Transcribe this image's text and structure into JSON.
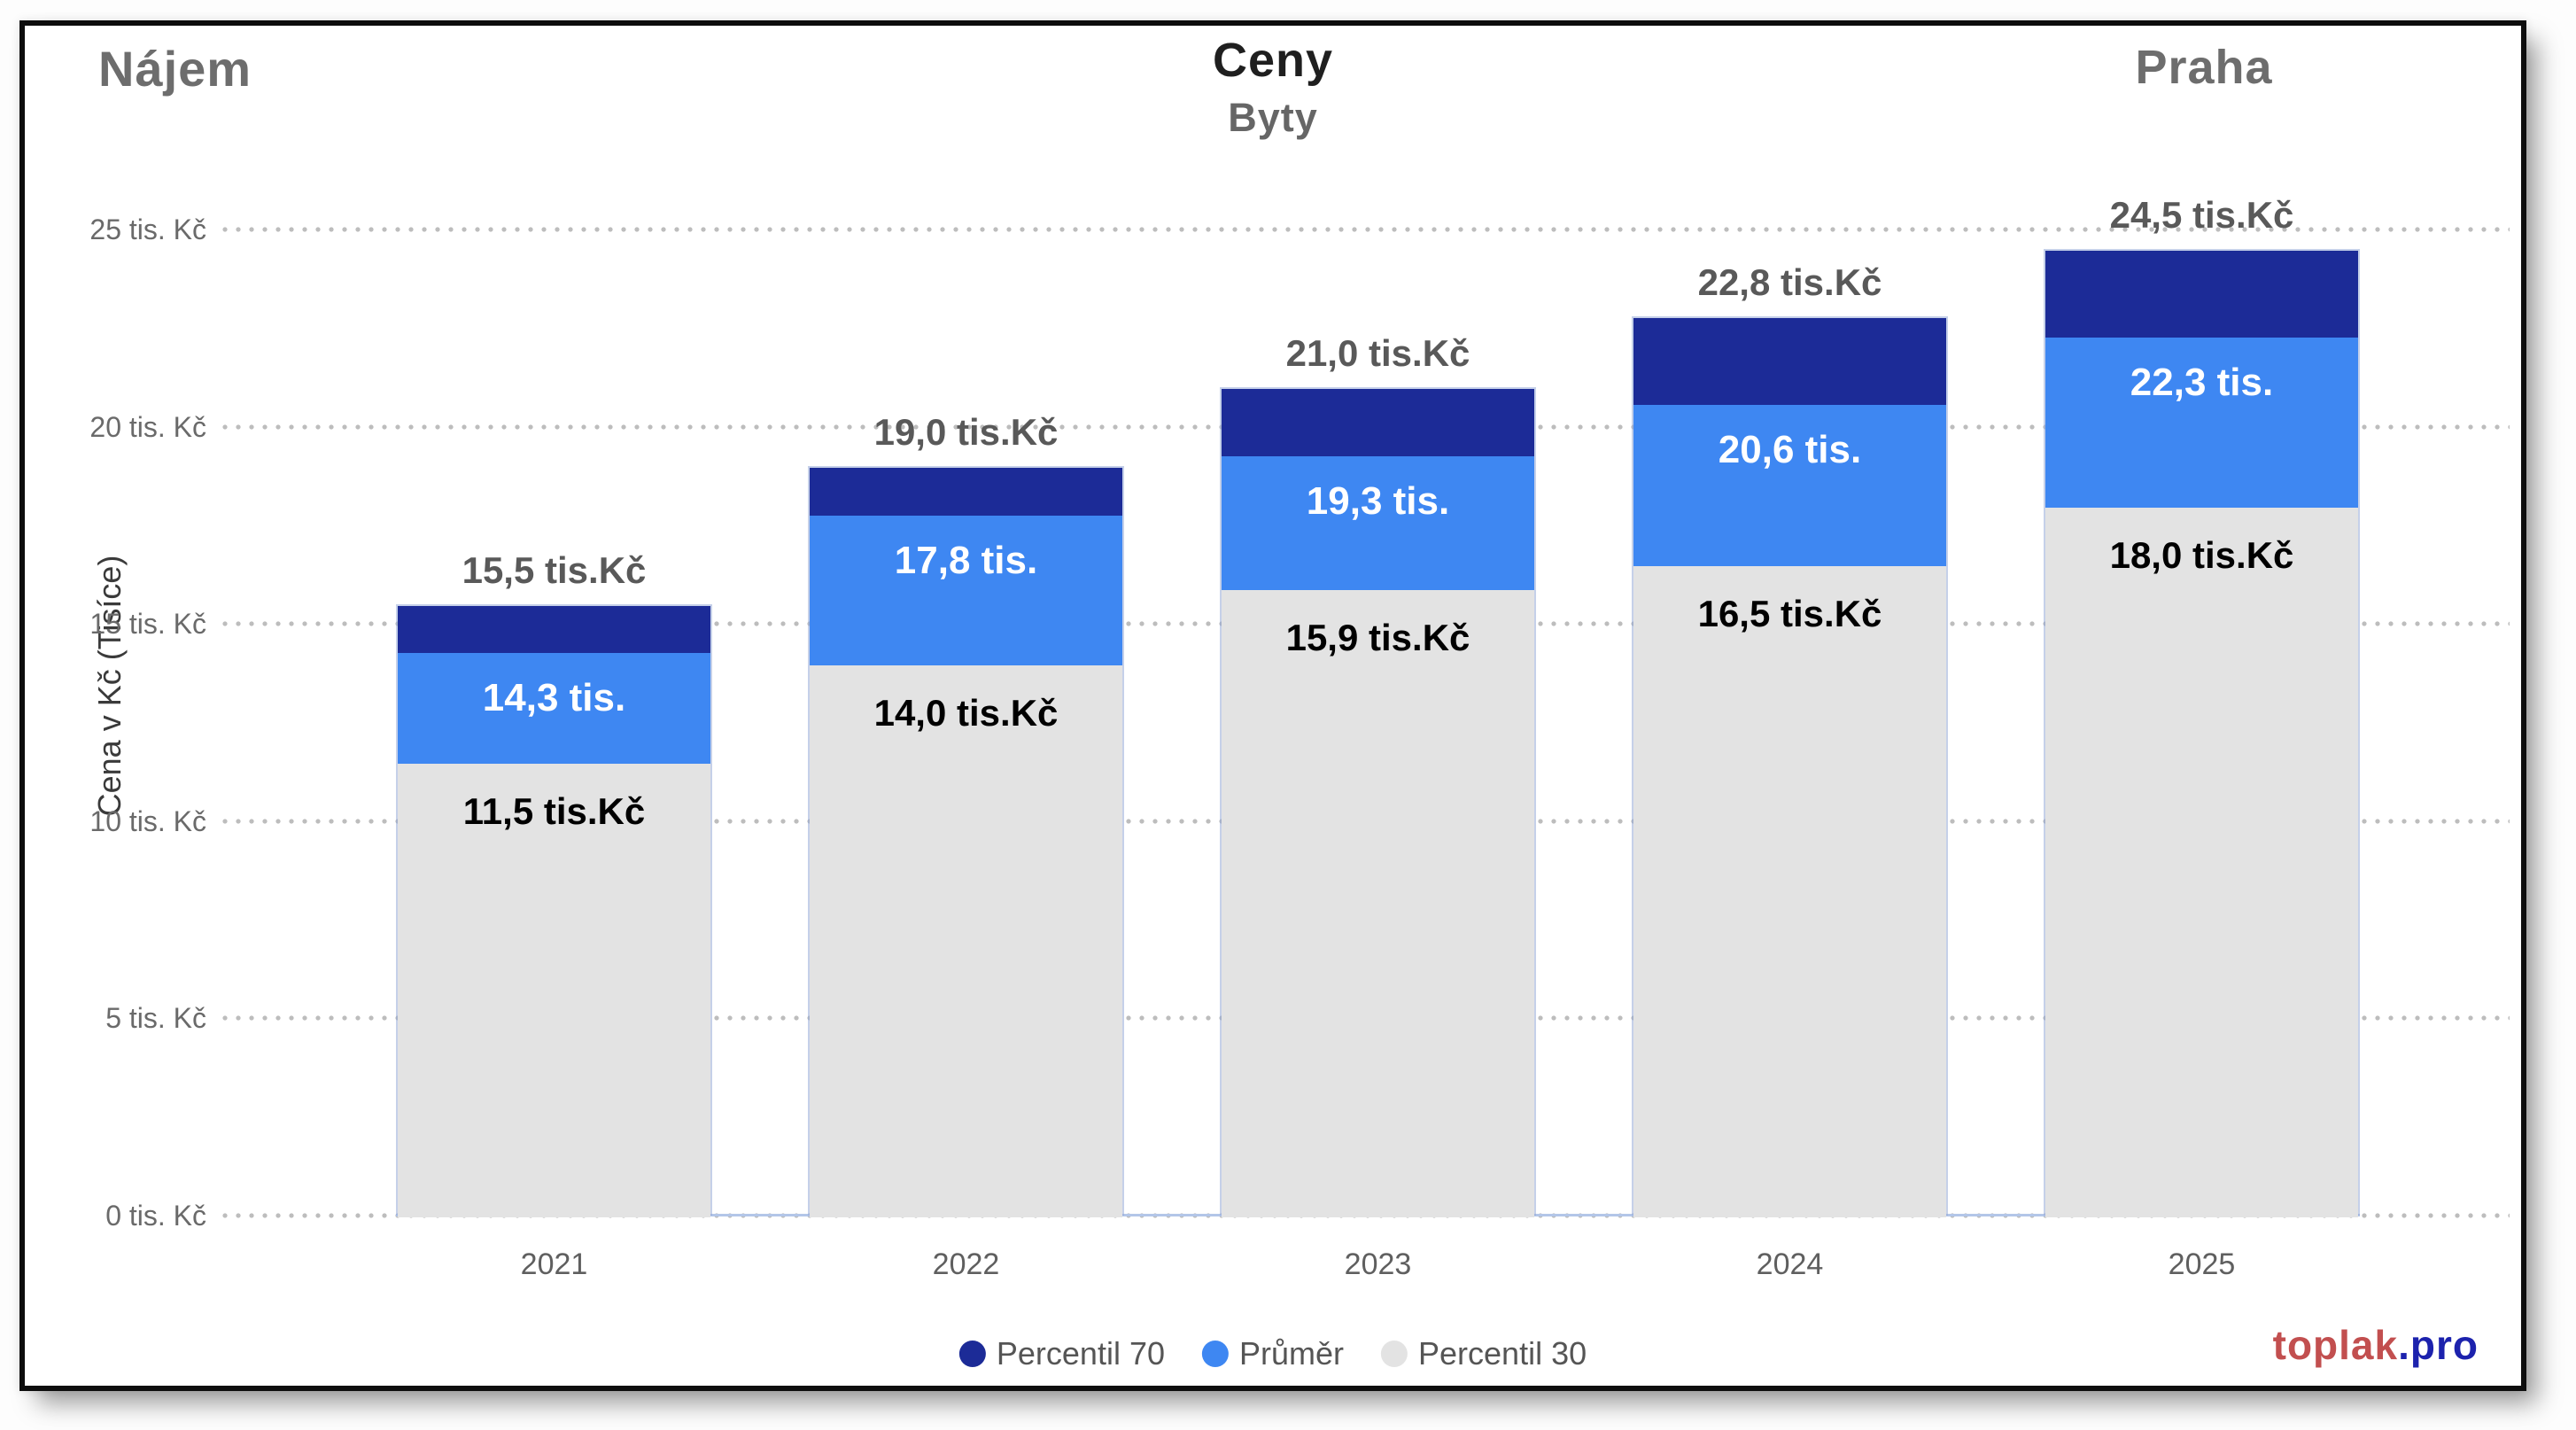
{
  "header": {
    "left_title": "Nájem",
    "center_title": "Ceny",
    "center_subtitle": "Byty",
    "right_title": "Praha"
  },
  "y_axis": {
    "title": "Cena v Kč (Tisíce)",
    "ticks": [
      {
        "value": 0,
        "label": "0 tis. Kč"
      },
      {
        "value": 5,
        "label": "5 tis. Kč"
      },
      {
        "value": 10,
        "label": "10 tis. Kč"
      },
      {
        "value": 15,
        "label": "15 tis. Kč"
      },
      {
        "value": 20,
        "label": "20 tis. Kč"
      },
      {
        "value": 25,
        "label": "25 tis. Kč"
      }
    ]
  },
  "chart_data": {
    "type": "bar",
    "subtype": "stacked-percentile-range",
    "title": "Ceny",
    "subtitle": "Byty",
    "xlabel": "",
    "ylabel": "Cena v Kč (Tisíce)",
    "ylim": [
      0,
      25
    ],
    "grid": "horizontal-dotted",
    "legend_position": "bottom",
    "categories": [
      "2021",
      "2022",
      "2023",
      "2024",
      "2025"
    ],
    "series": [
      {
        "name": "Percentil 70",
        "color": "#1c2b97",
        "values": [
          15.5,
          19.0,
          21.0,
          22.8,
          24.5
        ],
        "labels": [
          "15,5 tis.Kč",
          "19,0 tis.Kč",
          "21,0 tis.Kč",
          "22,8 tis.Kč",
          "24,5 tis.Kč"
        ]
      },
      {
        "name": "Průměr",
        "color": "#3e87f2",
        "values": [
          14.3,
          17.8,
          19.3,
          20.6,
          22.3
        ],
        "labels": [
          "14,3 tis.",
          "17,8 tis.",
          "19,3 tis.",
          "20,6 tis.",
          "22,3 tis."
        ]
      },
      {
        "name": "Percentil 30",
        "color": "#e3e3e3",
        "values": [
          11.5,
          14.0,
          15.9,
          16.5,
          18.0
        ],
        "labels": [
          "11,5 tis.Kč",
          "14,0 tis.Kč",
          "15,9 tis.Kč",
          "16,5 tis.Kč",
          "18,0 tis.Kč"
        ]
      }
    ]
  },
  "legend": {
    "items": [
      {
        "label": "Percentil 70",
        "color": "#1c2b97"
      },
      {
        "label": "Průměr",
        "color": "#3e87f2"
      },
      {
        "label": "Percentil 30",
        "color": "#e3e3e3"
      }
    ]
  },
  "branding": {
    "name": "toplak",
    "tld": ".pro",
    "name_color": "#c24f4f",
    "tld_color": "#1c22ad"
  }
}
